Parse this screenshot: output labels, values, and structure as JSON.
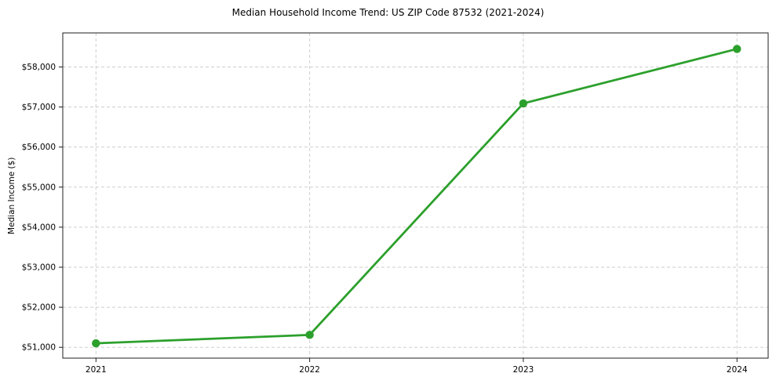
{
  "chart_data": {
    "type": "line",
    "title": "Median Household Income Trend: US ZIP Code 87532 (2021-2024)",
    "xlabel": "",
    "ylabel": "Median Income ($)",
    "categories": [
      "2021",
      "2022",
      "2023",
      "2024"
    ],
    "values": [
      51100,
      51310,
      57090,
      58450
    ],
    "y_ticks": {
      "values": [
        51000,
        52000,
        53000,
        54000,
        55000,
        56000,
        57000,
        58000
      ],
      "labels": [
        "$51,000",
        "$52,000",
        "$53,000",
        "$54,000",
        "$55,000",
        "$56,000",
        "$57,000",
        "$58,000"
      ]
    },
    "ylim": [
      50730,
      58850
    ],
    "grid": true,
    "grid_style": "dashed",
    "legend_position": "none",
    "marker": "circle",
    "colors": {
      "line": "#2ca02c",
      "marker": "#2ca02c",
      "grid": "#c9c9c9",
      "spine": "#1f1f1f",
      "text": "#000000",
      "background": "#ffffff"
    }
  }
}
